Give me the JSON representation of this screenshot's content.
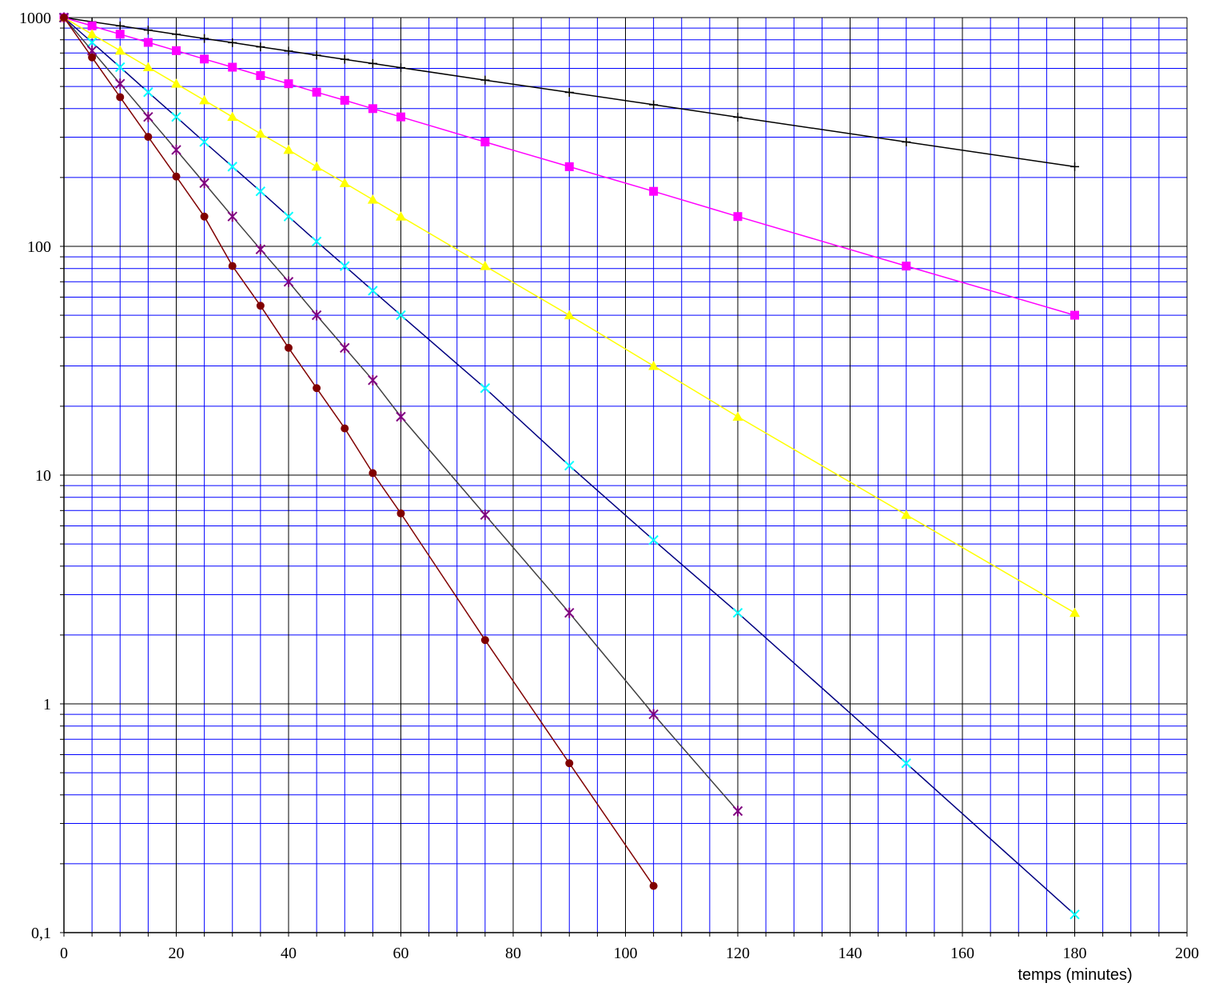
{
  "chart_data": {
    "type": "line",
    "title": "",
    "xlabel": "temps (minutes)",
    "ylabel": "",
    "xlim": [
      0,
      200
    ],
    "ylim": [
      0.1,
      1000
    ],
    "yscale": "log",
    "grid": true,
    "x_ticks": [
      "0",
      "20",
      "40",
      "60",
      "80",
      "100",
      "120",
      "140",
      "160",
      "180",
      "200"
    ],
    "y_ticks": [
      "0,1",
      "1",
      "10",
      "100",
      "1000"
    ],
    "colors": {
      "grid_major": "#000000",
      "grid_minor": "#0000ff"
    },
    "series": [
      {
        "color": "#000000",
        "marker": "plus",
        "x": [
          0,
          5,
          10,
          15,
          20,
          25,
          30,
          35,
          40,
          45,
          50,
          55,
          60,
          75,
          90,
          105,
          120,
          150,
          180
        ],
        "y": [
          1000,
          959,
          920,
          882,
          845,
          810,
          777,
          745,
          714,
          685,
          657,
          630,
          604,
          533,
          471,
          416,
          367,
          286,
          223
        ]
      },
      {
        "color": "#ff00ff",
        "marker": "square",
        "x": [
          0,
          5,
          10,
          15,
          20,
          25,
          30,
          35,
          40,
          45,
          50,
          55,
          60,
          75,
          90,
          105,
          120,
          150,
          180
        ],
        "y": [
          1000,
          920,
          846,
          779,
          717,
          659,
          607,
          558,
          514,
          472,
          435,
          400,
          368,
          286,
          223,
          174,
          135,
          82,
          50
        ]
      },
      {
        "color": "#ffff00",
        "marker": "triangle",
        "x": [
          0,
          5,
          10,
          15,
          20,
          25,
          30,
          35,
          40,
          45,
          50,
          55,
          60,
          75,
          90,
          105,
          120,
          150,
          180
        ],
        "y": [
          1000,
          846,
          717,
          607,
          514,
          435,
          368,
          311,
          264,
          223,
          189,
          160,
          135,
          82,
          50,
          30,
          18,
          6.7,
          2.5
        ]
      },
      {
        "color": "#00ffff",
        "marker": "x",
        "x": [
          0,
          5,
          10,
          15,
          20,
          25,
          30,
          35,
          40,
          45,
          50,
          55,
          60,
          75,
          90,
          105,
          120,
          150,
          180
        ],
        "y": [
          1000,
          779,
          607,
          472,
          368,
          286,
          223,
          174,
          135,
          105,
          82,
          64,
          50,
          24,
          11,
          5.2,
          2.5,
          0.55,
          0.12
        ]
      },
      {
        "color": "#800080",
        "marker": "star",
        "x": [
          0,
          5,
          10,
          15,
          20,
          25,
          30,
          35,
          40,
          45,
          50,
          55,
          60,
          75,
          90,
          105,
          120
        ],
        "y": [
          1000,
          717,
          514,
          368,
          264,
          189,
          135,
          97,
          70,
          50,
          36,
          26,
          18,
          6.7,
          2.5,
          0.9,
          0.34
        ]
      },
      {
        "color": "#800000",
        "marker": "circle",
        "x": [
          0,
          5,
          10,
          15,
          20,
          25,
          30,
          35,
          40,
          45,
          50,
          55,
          60,
          75,
          90,
          105
        ],
        "y": [
          1000,
          670,
          449,
          301,
          202,
          135,
          82,
          55,
          36,
          24,
          16,
          10.2,
          6.8,
          1.9,
          0.55,
          0.16
        ]
      }
    ]
  }
}
